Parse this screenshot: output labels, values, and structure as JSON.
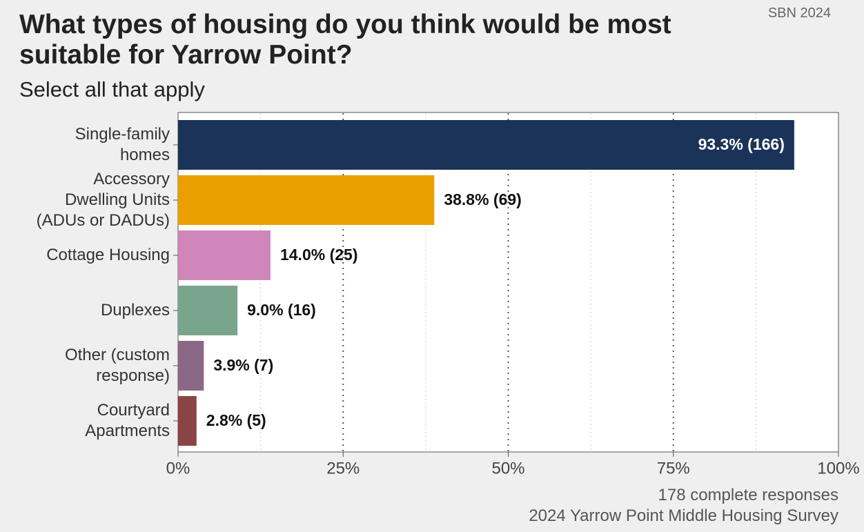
{
  "chart_data": {
    "type": "bar",
    "orientation": "horizontal",
    "title": "What types of housing do you think would be most suitable for Yarrow Point?",
    "subtitle": "Select all that apply",
    "tag": "SBN 2024",
    "caption": [
      "178 complete responses",
      "2024 Yarrow Point Middle Housing Survey"
    ],
    "categories": [
      "Single-family\nhomes",
      "Accessory\nDwelling Units\n(ADUs or DADUs)",
      "Cottage Housing",
      "Duplexes",
      "Other (custom\nresponse)",
      "Courtyard\nApartments"
    ],
    "values": [
      93.3,
      38.8,
      14.0,
      9.0,
      3.9,
      2.8
    ],
    "value_labels": [
      "93.3% (166)",
      "38.8% (69)",
      "14.0% (25)",
      "9.0% (16)",
      "3.9% (7)",
      "2.8% (5)"
    ],
    "colors": [
      "#1b3358",
      "#eba000",
      "#cf86b8",
      "#79a58d",
      "#8c6887",
      "#8b4444"
    ],
    "xlim": [
      0,
      100
    ],
    "xticks": [
      {
        "value": 0,
        "label": "0%"
      },
      {
        "value": 25,
        "label": "25%"
      },
      {
        "value": 50,
        "label": "50%"
      },
      {
        "value": 75,
        "label": "75%"
      },
      {
        "value": 100,
        "label": "100%"
      }
    ],
    "minor_xticks": [
      12.5,
      37.5,
      62.5,
      87.5
    ],
    "grid": true
  }
}
